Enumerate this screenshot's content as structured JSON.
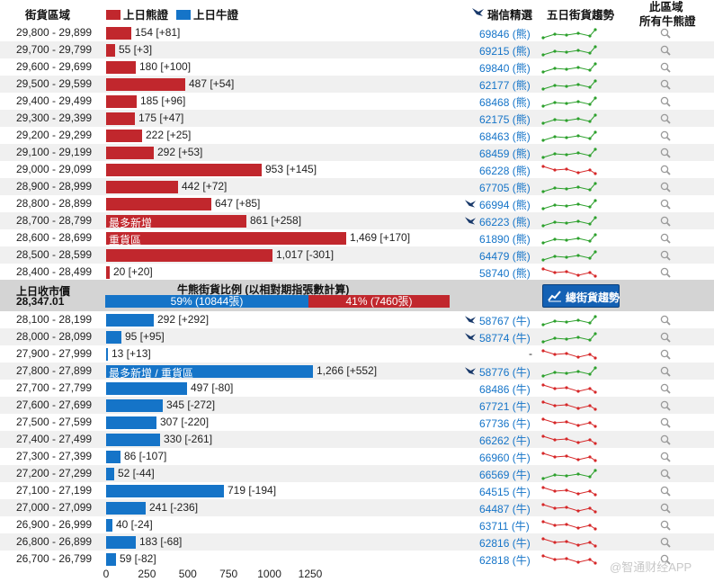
{
  "header": {
    "range_label": "街貨區域",
    "bear_legend": "上日熊證",
    "bull_legend": "上日牛證",
    "issuer_label": "瑞信精選",
    "trend_label": "五日街貨趨勢",
    "all_cbbc_line1": "此區域",
    "all_cbbc_line2": "所有牛熊證"
  },
  "colors": {
    "bear": "#c1272d",
    "bull": "#1574c8",
    "spark_up": "#2ca02c",
    "spark_down": "#d62728"
  },
  "middle": {
    "close_label": "上日收市價",
    "close_value": "28,347.01",
    "ratio_title": "牛熊街貨比例 (以相對期指張數計算)",
    "bull_ratio_text": "59% (10844張)",
    "bear_ratio_text": "41% (7460張)",
    "bull_ratio": 0.59,
    "trend_button": "總街貨趨勢"
  },
  "chart_data": {
    "type": "bar",
    "xlim": [
      0,
      1350
    ],
    "x_ticks": [
      "0",
      "250",
      "500",
      "750",
      "1000",
      "1250"
    ],
    "bear_rows": [
      {
        "range": "29,800 - 29,899",
        "value": 154,
        "change": "154 [+81]",
        "code": "69846 (熊)",
        "bird": false,
        "trend": "up",
        "inbar": ""
      },
      {
        "range": "29,700 - 29,799",
        "value": 55,
        "change": "55 [+3]",
        "code": "69215 (熊)",
        "bird": false,
        "trend": "up",
        "inbar": ""
      },
      {
        "range": "29,600 - 29,699",
        "value": 180,
        "change": "180 [+100]",
        "code": "69840 (熊)",
        "bird": false,
        "trend": "up",
        "inbar": ""
      },
      {
        "range": "29,500 - 29,599",
        "value": 487,
        "change": "487 [+54]",
        "code": "62177 (熊)",
        "bird": false,
        "trend": "up",
        "inbar": ""
      },
      {
        "range": "29,400 - 29,499",
        "value": 185,
        "change": "185 [+96]",
        "code": "68468 (熊)",
        "bird": false,
        "trend": "up",
        "inbar": ""
      },
      {
        "range": "29,300 - 29,399",
        "value": 175,
        "change": "175 [+47]",
        "code": "62175 (熊)",
        "bird": false,
        "trend": "up",
        "inbar": ""
      },
      {
        "range": "29,200 - 29,299",
        "value": 222,
        "change": "222 [+25]",
        "code": "68463 (熊)",
        "bird": false,
        "trend": "up",
        "inbar": ""
      },
      {
        "range": "29,100 - 29,199",
        "value": 292,
        "change": "292 [+53]",
        "code": "68459 (熊)",
        "bird": false,
        "trend": "up",
        "inbar": ""
      },
      {
        "range": "29,000 - 29,099",
        "value": 953,
        "change": "953 [+145]",
        "code": "66228 (熊)",
        "bird": false,
        "trend": "down",
        "inbar": ""
      },
      {
        "range": "28,900 - 28,999",
        "value": 442,
        "change": "442 [+72]",
        "code": "67705 (熊)",
        "bird": false,
        "trend": "up",
        "inbar": ""
      },
      {
        "range": "28,800 - 28,899",
        "value": 647,
        "change": "647 [+85]",
        "code": "66994 (熊)",
        "bird": true,
        "trend": "up",
        "inbar": ""
      },
      {
        "range": "28,700 - 28,799",
        "value": 861,
        "change": "861 [+258]",
        "code": "66223 (熊)",
        "bird": true,
        "trend": "up",
        "inbar": "最多新增"
      },
      {
        "range": "28,600 - 28,699",
        "value": 1469,
        "change": "1,469 [+170]",
        "code": "61890 (熊)",
        "bird": false,
        "trend": "up",
        "inbar": "重貨區"
      },
      {
        "range": "28,500 - 28,599",
        "value": 1017,
        "change": "1,017 [-301]",
        "code": "64479 (熊)",
        "bird": false,
        "trend": "up",
        "inbar": ""
      },
      {
        "range": "28,400 - 28,499",
        "value": 20,
        "change": "20 [+20]",
        "code": "58740 (熊)",
        "bird": false,
        "trend": "down",
        "inbar": ""
      }
    ],
    "bull_rows": [
      {
        "range": "28,100 - 28,199",
        "value": 292,
        "change": "292 [+292]",
        "code": "58767 (牛)",
        "bird": true,
        "trend": "up",
        "inbar": ""
      },
      {
        "range": "28,000 - 28,099",
        "value": 95,
        "change": "95 [+95]",
        "code": "58774 (牛)",
        "bird": true,
        "trend": "up",
        "inbar": ""
      },
      {
        "range": "27,900 - 27,999",
        "value": 13,
        "change": "13 [+13]",
        "code": "-",
        "bird": false,
        "trend": "down",
        "inbar": ""
      },
      {
        "range": "27,800 - 27,899",
        "value": 1266,
        "change": "1,266 [+552]",
        "code": "58776 (牛)",
        "bird": true,
        "trend": "up",
        "inbar": "最多新增 / 重貨區"
      },
      {
        "range": "27,700 - 27,799",
        "value": 497,
        "change": "497 [-80]",
        "code": "68486 (牛)",
        "bird": false,
        "trend": "down",
        "inbar": ""
      },
      {
        "range": "27,600 - 27,699",
        "value": 345,
        "change": "345 [-272]",
        "code": "67721 (牛)",
        "bird": false,
        "trend": "down",
        "inbar": ""
      },
      {
        "range": "27,500 - 27,599",
        "value": 307,
        "change": "307 [-220]",
        "code": "67736 (牛)",
        "bird": false,
        "trend": "down",
        "inbar": ""
      },
      {
        "range": "27,400 - 27,499",
        "value": 330,
        "change": "330 [-261]",
        "code": "66262 (牛)",
        "bird": false,
        "trend": "down",
        "inbar": ""
      },
      {
        "range": "27,300 - 27,399",
        "value": 86,
        "change": "86 [-107]",
        "code": "66960 (牛)",
        "bird": false,
        "trend": "down",
        "inbar": ""
      },
      {
        "range": "27,200 - 27,299",
        "value": 52,
        "change": "52 [-44]",
        "code": "66569 (牛)",
        "bird": false,
        "trend": "up",
        "inbar": ""
      },
      {
        "range": "27,100 - 27,199",
        "value": 719,
        "change": "719 [-194]",
        "code": "64515 (牛)",
        "bird": false,
        "trend": "down",
        "inbar": ""
      },
      {
        "range": "27,000 - 27,099",
        "value": 241,
        "change": "241 [-236]",
        "code": "64487 (牛)",
        "bird": false,
        "trend": "down",
        "inbar": ""
      },
      {
        "range": "26,900 - 26,999",
        "value": 40,
        "change": "40 [-24]",
        "code": "63711 (牛)",
        "bird": false,
        "trend": "down",
        "inbar": ""
      },
      {
        "range": "26,800 - 26,899",
        "value": 183,
        "change": "183 [-68]",
        "code": "62816 (牛)",
        "bird": false,
        "trend": "down",
        "inbar": ""
      },
      {
        "range": "26,700 - 26,799",
        "value": 59,
        "change": "59 [-82]",
        "code": "62818 (牛)",
        "bird": false,
        "trend": "down",
        "inbar": ""
      }
    ]
  },
  "watermark": "@智通财经APP"
}
